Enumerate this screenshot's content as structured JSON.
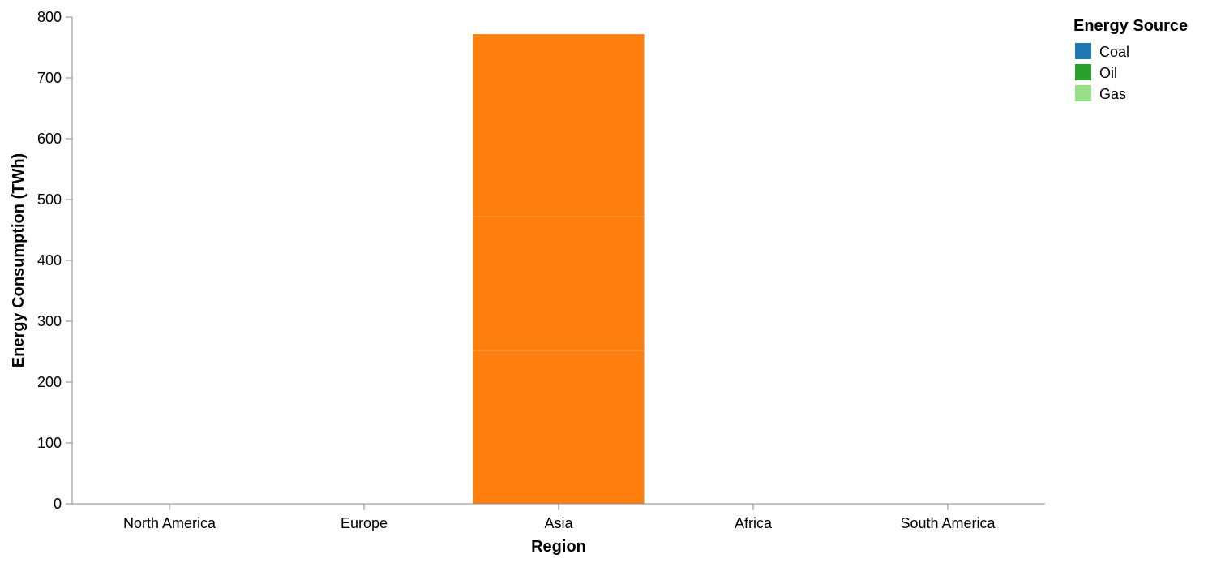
{
  "chart_data": {
    "type": "bar",
    "stacked": true,
    "categories": [
      "North America",
      "Europe",
      "Asia",
      "Africa",
      "South America"
    ],
    "xlabel": "Region",
    "ylabel": "Energy Consumption (TWh)",
    "ylim": [
      0,
      800
    ],
    "yticks": [
      0,
      100,
      200,
      300,
      400,
      500,
      600,
      700,
      800
    ],
    "grid": false,
    "legend": {
      "title": "Energy Source",
      "placement": "top-right",
      "entries": [
        {
          "name": "Coal",
          "color": "#1f77b4"
        },
        {
          "name": "Oil",
          "color": "#2ca02c"
        },
        {
          "name": "Gas",
          "color": "#98df8a"
        }
      ]
    },
    "bar_color": "#ff7f0e",
    "stacks": [
      {
        "category": "Asia",
        "segments": [
          252,
          220,
          300
        ]
      }
    ]
  }
}
